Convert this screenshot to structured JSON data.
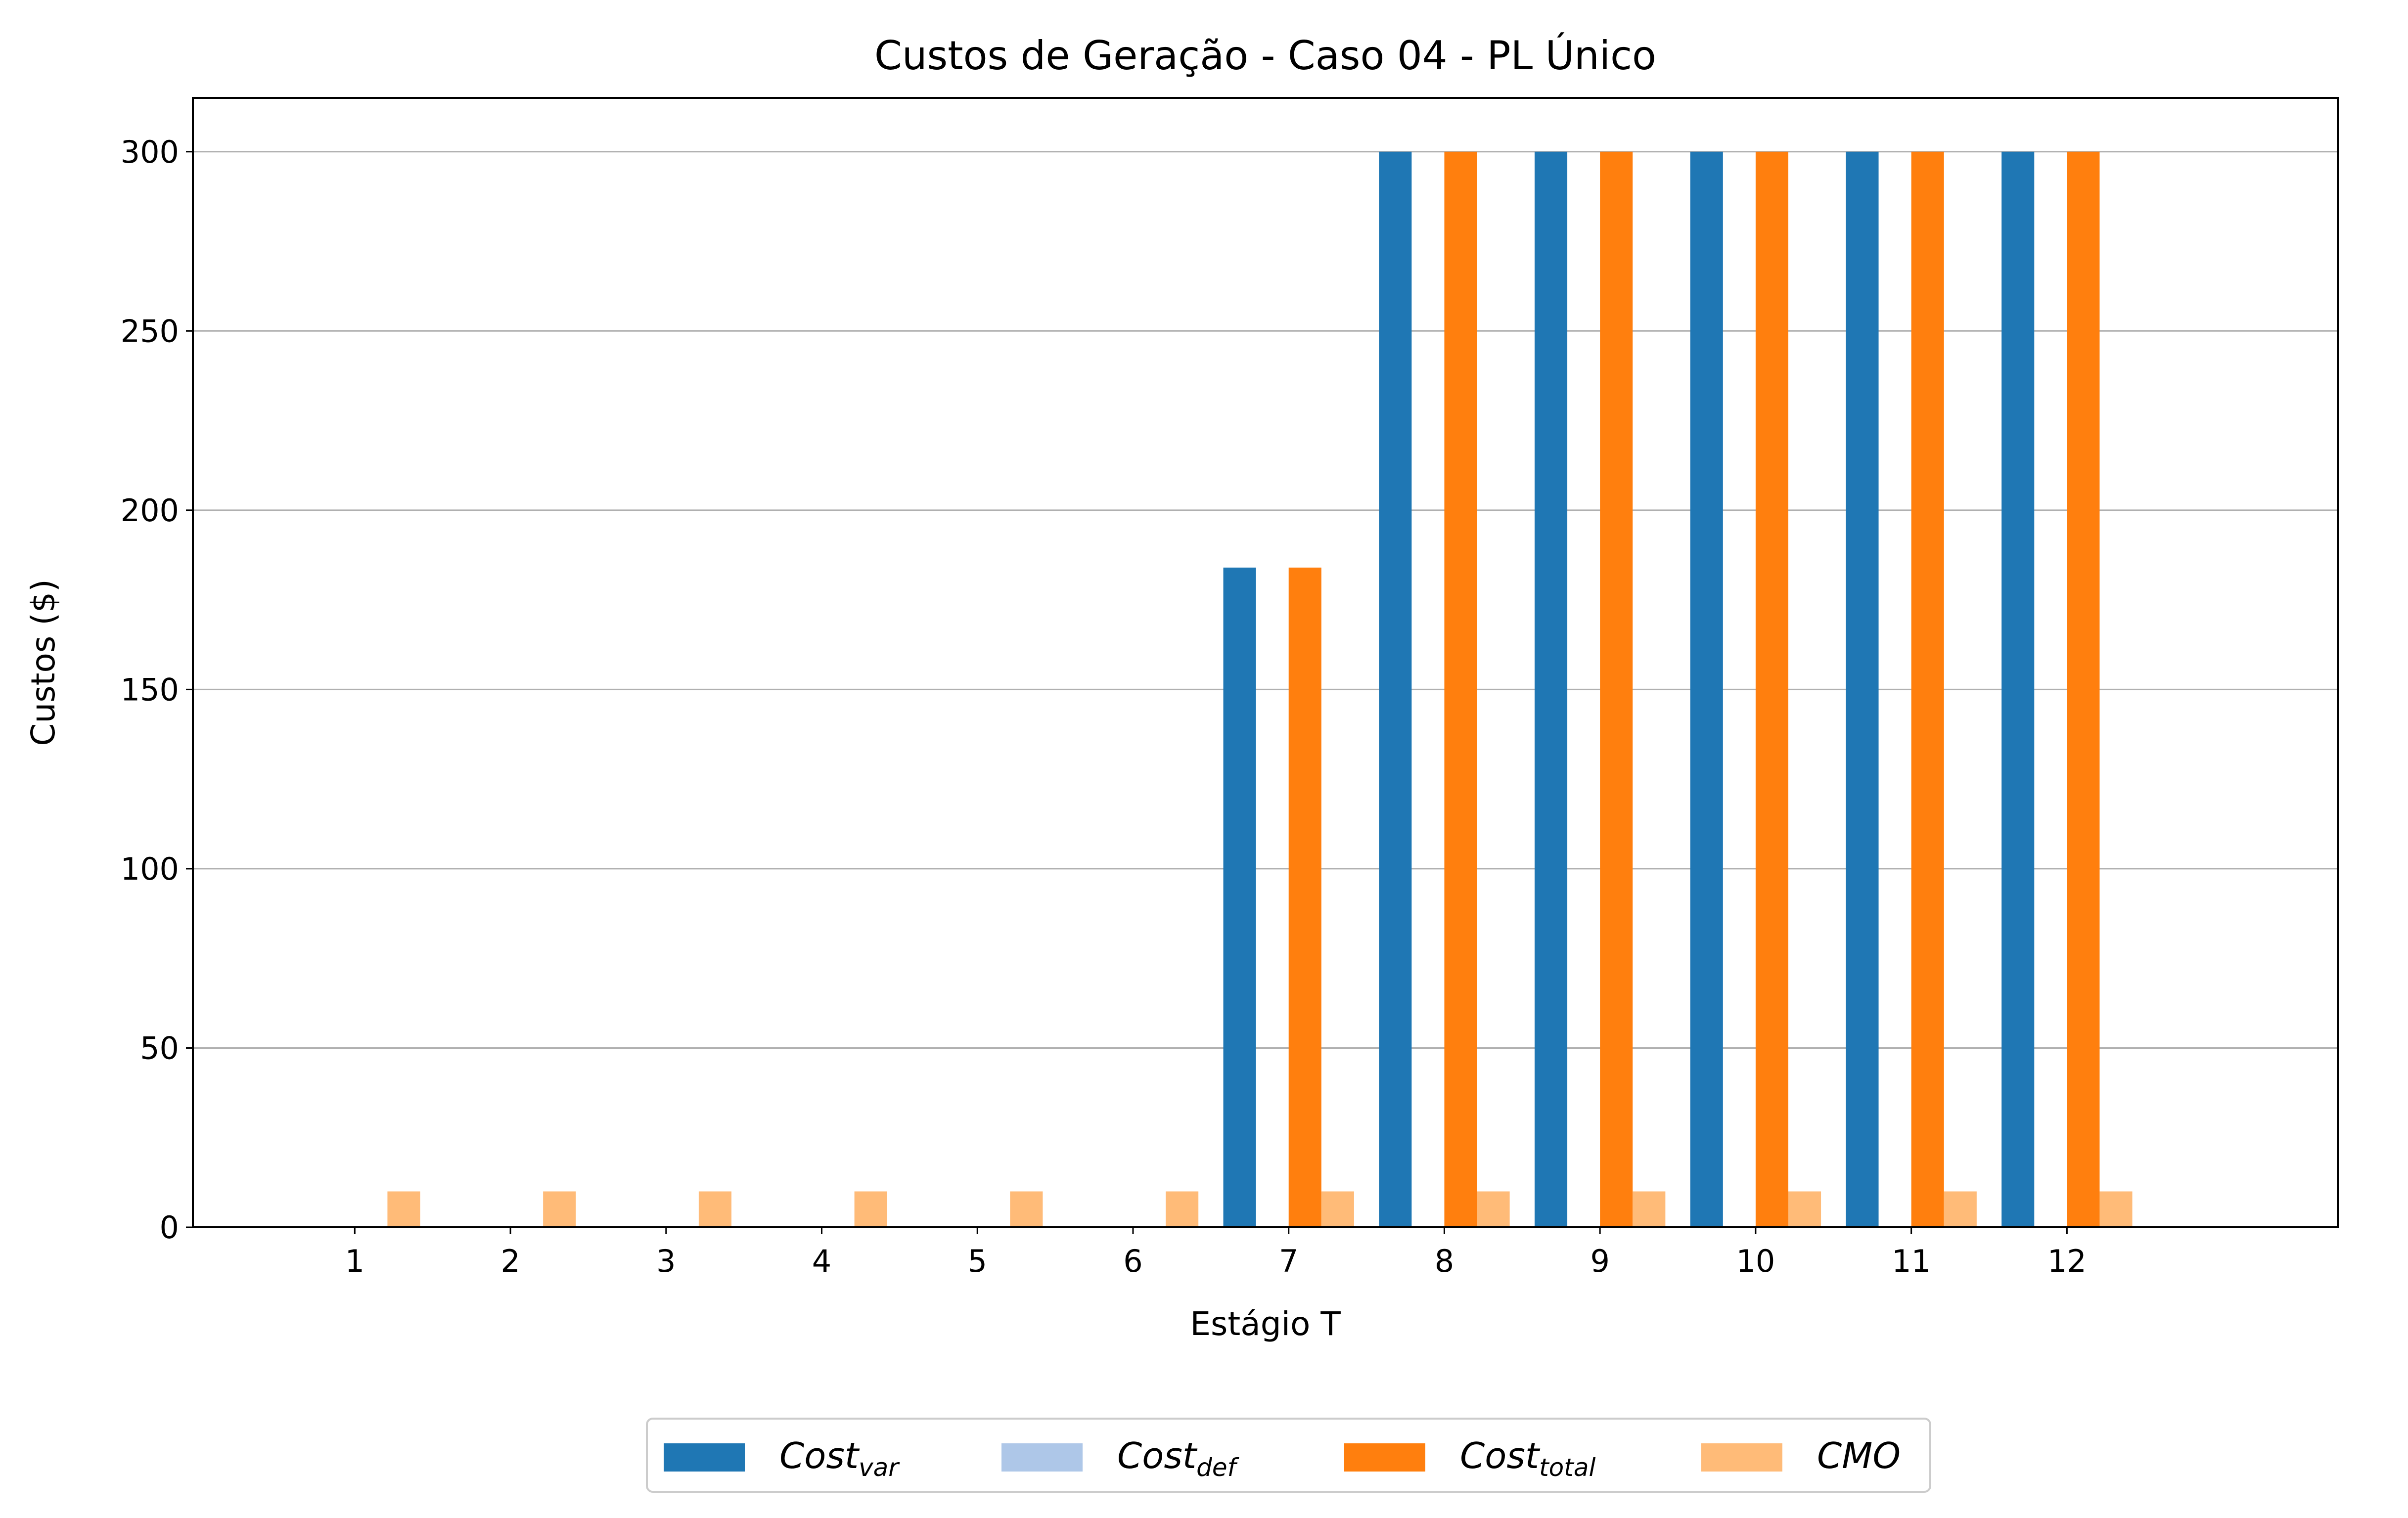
{
  "chart_data": {
    "type": "bar",
    "title": "Custos de Geração - Caso 04 - PL Único",
    "xlabel": "Estágio T",
    "ylabel": "Custos ($)",
    "categories": [
      "1",
      "2",
      "3",
      "4",
      "5",
      "6",
      "7",
      "8",
      "9",
      "10",
      "11",
      "12"
    ],
    "ylim": [
      0,
      315
    ],
    "yticks": [
      0,
      50,
      100,
      150,
      200,
      250,
      300
    ],
    "grid": "y",
    "legend_position": "bottom-center",
    "series": [
      {
        "name": "Cost",
        "sub": "var",
        "color": "#1f77b4",
        "values": [
          0,
          0,
          0,
          0,
          0,
          0,
          184,
          300,
          300,
          300,
          300,
          300
        ]
      },
      {
        "name": "Cost",
        "sub": "def",
        "color": "#aec7e8",
        "values": [
          0,
          0,
          0,
          0,
          0,
          0,
          0,
          0,
          0,
          0,
          0,
          0
        ]
      },
      {
        "name": "Cost",
        "sub": "total",
        "color": "#ff7f0e",
        "values": [
          0,
          0,
          0,
          0,
          0,
          0,
          184,
          300,
          300,
          300,
          300,
          300
        ]
      },
      {
        "name": "CMO",
        "sub": "",
        "color": "#ffbb78",
        "values": [
          10,
          10,
          10,
          10,
          10,
          10,
          10,
          10,
          10,
          10,
          10,
          10
        ]
      }
    ]
  }
}
